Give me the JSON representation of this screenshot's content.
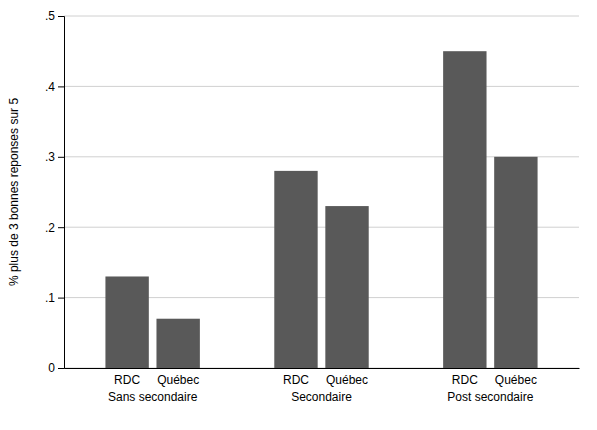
{
  "chart_data": {
    "type": "bar",
    "ylabel": "% plus de 3 bonnes reponses sur 5",
    "categories": [
      "Sans secondaire",
      "Secondaire",
      "Post secondaire"
    ],
    "series": [
      {
        "name": "RDC",
        "values": [
          0.13,
          0.28,
          0.45
        ]
      },
      {
        "name": "Québec",
        "values": [
          0.07,
          0.23,
          0.3
        ]
      }
    ],
    "color": "#595959",
    "ylim": [
      0,
      0.5
    ],
    "yticks": [
      0,
      {
        "value": 0.1,
        "label": ".1"
      },
      {
        "value": 0.2,
        "label": ".2"
      },
      {
        "value": 0.3,
        "label": ".3"
      },
      {
        "value": 0.4,
        "label": ".4"
      },
      {
        "value": 0.5,
        "label": ".5"
      }
    ],
    "grid": true
  }
}
